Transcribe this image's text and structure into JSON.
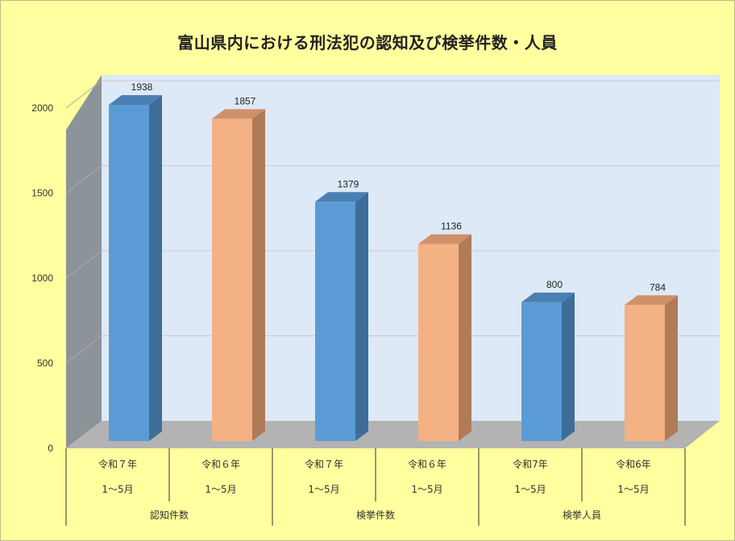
{
  "chart_data": {
    "type": "bar",
    "title": "富山県内における刑法犯の認知及び検挙件数・人員",
    "ylim": [
      0,
      2000
    ],
    "yticks": [
      0,
      500,
      1000,
      1500,
      2000
    ],
    "grid": true,
    "categories": [
      {
        "top": "令和７年",
        "bottom": "1～5月",
        "group": "認知件数"
      },
      {
        "top": "令和６年",
        "bottom": "1～5月",
        "group": "認知件数"
      },
      {
        "top": "令和７年",
        "bottom": "1～5月",
        "group": "検挙件数"
      },
      {
        "top": "令和６年",
        "bottom": "1～5月",
        "group": "検挙件数"
      },
      {
        "top": "令和7年",
        "bottom": "1～5月",
        "group": "検挙人員"
      },
      {
        "top": "令和6年",
        "bottom": "1～5月",
        "group": "検挙人員"
      }
    ],
    "groups": [
      "認知件数",
      "検挙件数",
      "検挙人員"
    ],
    "values": [
      1938,
      1857,
      1379,
      1136,
      800,
      784
    ],
    "bar_colors": [
      "#5b9bd5",
      "#f4b183",
      "#5b9bd5",
      "#f4b183",
      "#5b9bd5",
      "#f4b183"
    ]
  },
  "colors": {
    "background": "#ffff9f",
    "plot_back": "#dde9f7",
    "side_wall": "#8c9399",
    "floor": "#b3b3b3",
    "blue": "#5b9bd5",
    "orange": "#f4b183"
  }
}
